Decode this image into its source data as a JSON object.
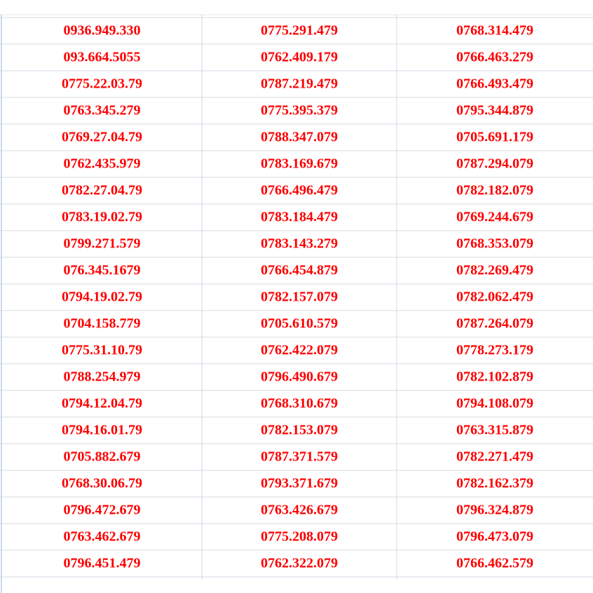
{
  "table": {
    "rows": [
      [
        "0936.949.330",
        "0775.291.479",
        "0768.314.479"
      ],
      [
        "093.664.5055",
        "0762.409.179",
        "0766.463.279"
      ],
      [
        "0775.22.03.79",
        "0787.219.479",
        "0766.493.479"
      ],
      [
        "0763.345.279",
        "0775.395.379",
        "0795.344.879"
      ],
      [
        "0769.27.04.79",
        "0788.347.079",
        "0705.691.179"
      ],
      [
        "0762.435.979",
        "0783.169.679",
        "0787.294.079"
      ],
      [
        "0782.27.04.79",
        "0766.496.479",
        "0782.182.079"
      ],
      [
        "0783.19.02.79",
        "0783.184.479",
        "0769.244.679"
      ],
      [
        "0799.271.579",
        "0783.143.279",
        "0768.353.079"
      ],
      [
        "076.345.1679",
        "0766.454.879",
        "0782.269.479"
      ],
      [
        "0794.19.02.79",
        "0782.157.079",
        "0782.062.479"
      ],
      [
        "0704.158.779",
        "0705.610.579",
        "0787.264.079"
      ],
      [
        "0775.31.10.79",
        "0762.422.079",
        "0778.273.179"
      ],
      [
        "0788.254.979",
        "0796.490.679",
        "0782.102.879"
      ],
      [
        "0794.12.04.79",
        "0768.310.679",
        "0794.108.079"
      ],
      [
        "0794.16.01.79",
        "0782.153.079",
        "0763.315.879"
      ],
      [
        "0705.882.679",
        "0787.371.579",
        "0782.271.479"
      ],
      [
        "0768.30.06.79",
        "0793.371.679",
        "0782.162.379"
      ],
      [
        "0796.472.679",
        "0763.426.679",
        "0796.324.879"
      ],
      [
        "0763.462.679",
        "0775.208.079",
        "0796.473.079"
      ],
      [
        "0796.451.479",
        "0762.322.079",
        "0766.462.579"
      ]
    ]
  }
}
